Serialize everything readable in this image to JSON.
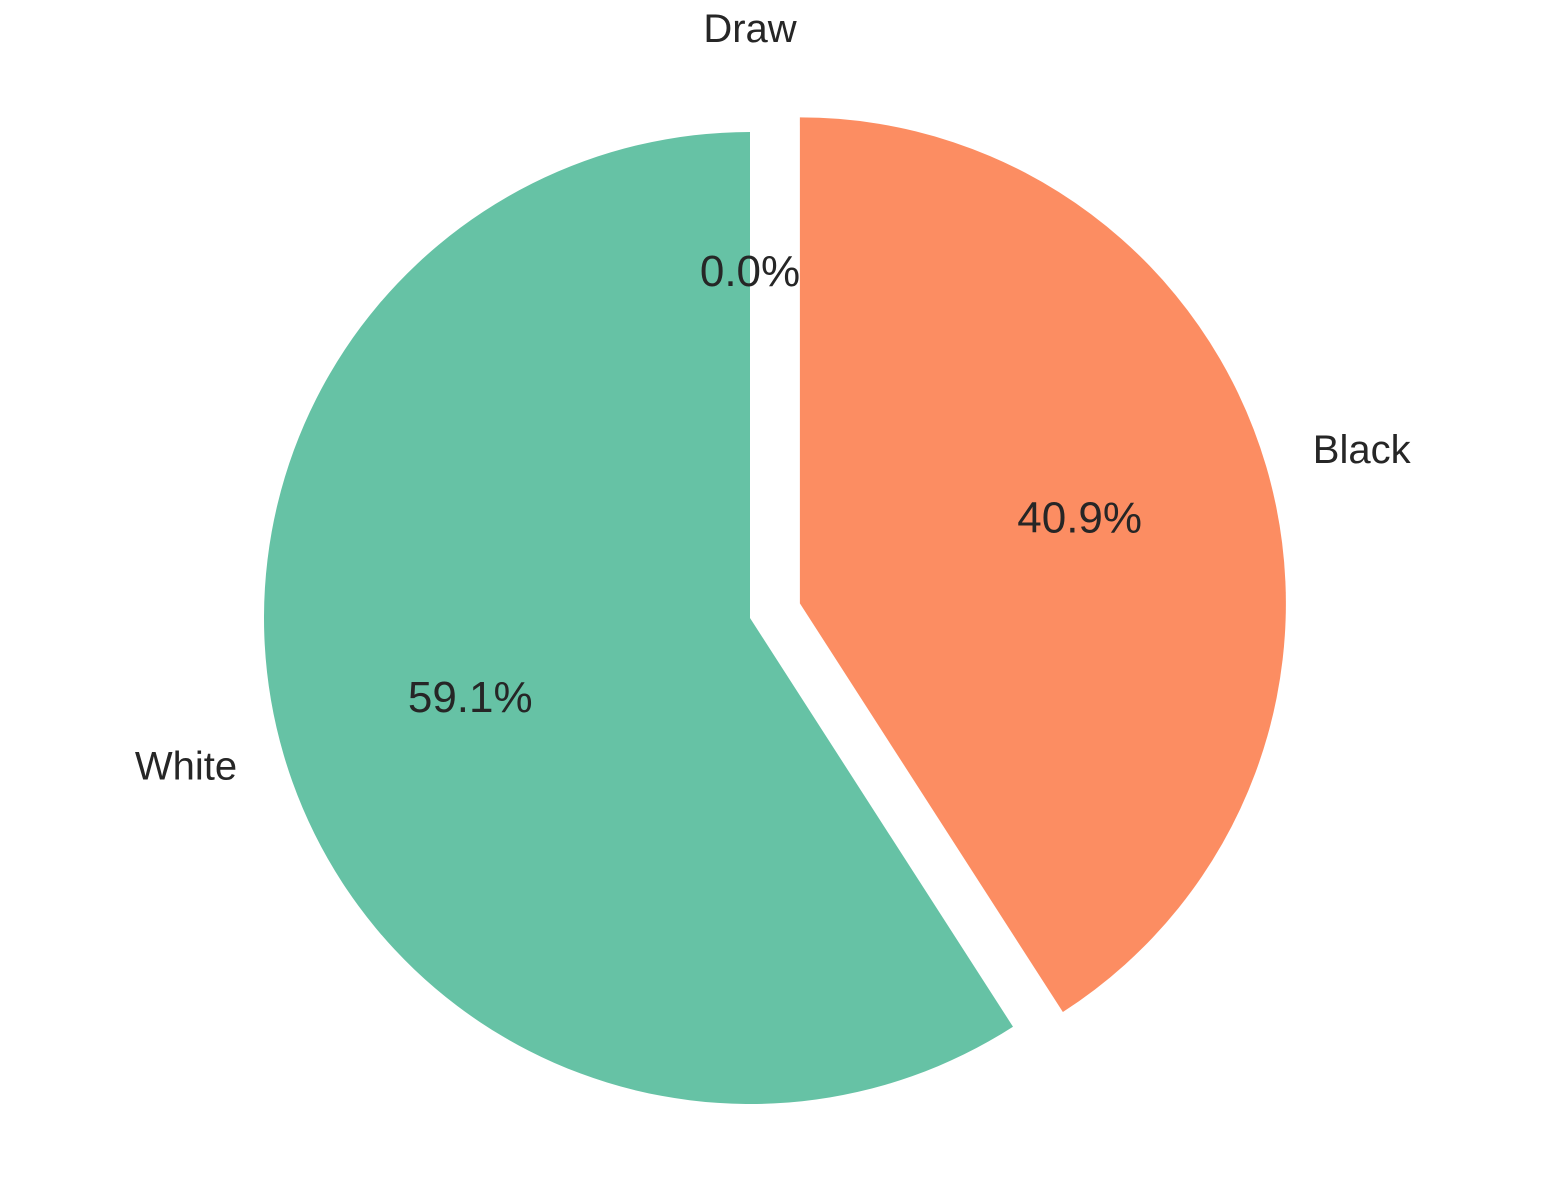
{
  "chart_data": {
    "type": "pie",
    "categories": [
      "White",
      "Black",
      "Draw"
    ],
    "values": [
      59.1,
      40.9,
      0.0
    ],
    "value_labels": [
      "59.1%",
      "40.9%",
      "0.0%"
    ],
    "colors": [
      "#66c2a5",
      "#fc8d62",
      "#8da0cb"
    ],
    "start_angle_deg": 90,
    "direction": "counterclockwise",
    "exploded": [
      false,
      true,
      true
    ],
    "title": "",
    "legend": "none"
  }
}
